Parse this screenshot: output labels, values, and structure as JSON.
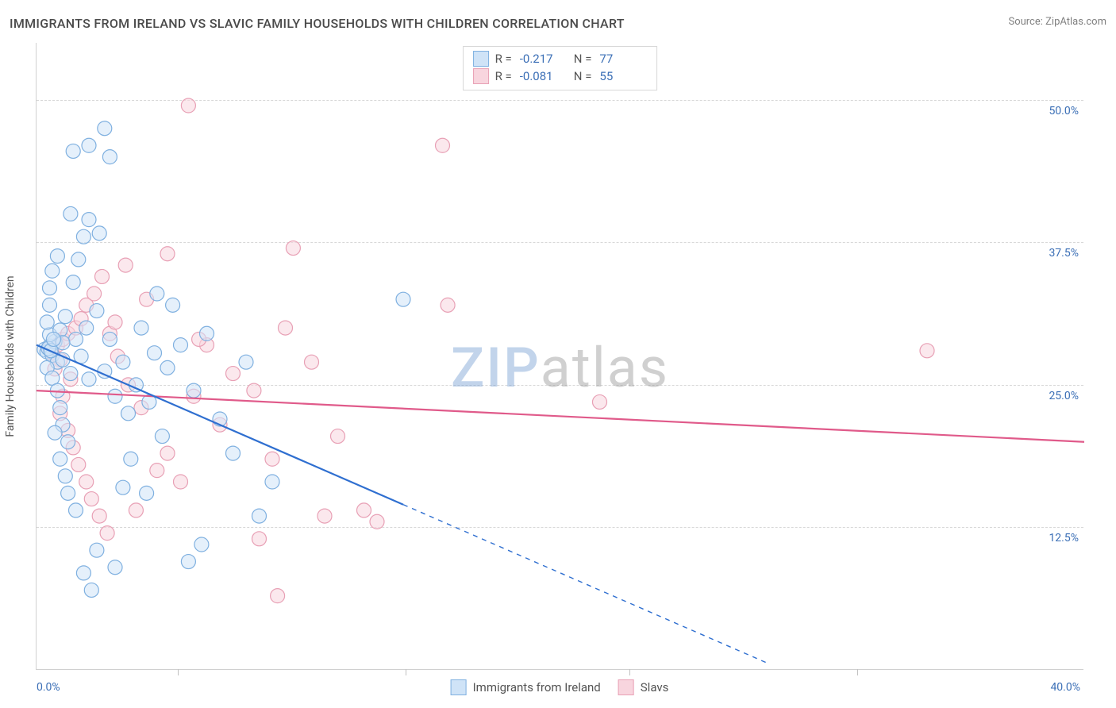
{
  "title": "IMMIGRANTS FROM IRELAND VS SLAVIC FAMILY HOUSEHOLDS WITH CHILDREN CORRELATION CHART",
  "source_label": "Source: ZipAtlas.com",
  "watermark": {
    "part1": "ZIP",
    "part2": "atlas"
  },
  "y_axis_title": "Family Households with Children",
  "chart": {
    "type": "scatter",
    "xlim": [
      0,
      40
    ],
    "ylim": [
      0,
      55
    ],
    "x_tick_labels": [
      {
        "v": 0,
        "label": "0.0%"
      },
      {
        "v": 40,
        "label": "40.0%"
      }
    ],
    "x_minor_ticks_pct": [
      0.135,
      0.352,
      0.566,
      0.783
    ],
    "y_ticks": [
      {
        "v": 12.5,
        "label": "12.5%"
      },
      {
        "v": 25.0,
        "label": "25.0%"
      },
      {
        "v": 37.5,
        "label": "37.5%"
      },
      {
        "v": 50.0,
        "label": "50.0%"
      }
    ],
    "grid_color": "#d8d8d8",
    "background_color": "#ffffff",
    "marker_radius": 9,
    "marker_stroke_width": 1.2,
    "trend_line_width": 2.2,
    "axis_label_color": "#3b6fb6",
    "y_axis_text_color": "#555555"
  },
  "series": {
    "ireland": {
      "label": "Immigrants from Ireland",
      "fill": "#cfe3f7",
      "stroke": "#7fb0e0",
      "fill_opacity": 0.55,
      "trend_color": "#2f6fd0",
      "R": "-0.217",
      "N": "77",
      "trend": {
        "x1": 0.0,
        "y1": 28.5,
        "x2": 14.0,
        "y2": 14.5,
        "x2_ext": 28.0,
        "y2_ext": 0.5
      },
      "points": [
        [
          0.3,
          28.1
        ],
        [
          0.4,
          27.9
        ],
        [
          0.5,
          28.4
        ],
        [
          0.6,
          27.6
        ],
        [
          0.7,
          28.8
        ],
        [
          0.8,
          27.0
        ],
        [
          0.5,
          29.4
        ],
        [
          0.4,
          26.5
        ],
        [
          0.9,
          29.8
        ],
        [
          1.0,
          27.2
        ],
        [
          0.4,
          30.5
        ],
        [
          0.6,
          25.6
        ],
        [
          1.1,
          31.0
        ],
        [
          1.3,
          26.0
        ],
        [
          0.5,
          32.0
        ],
        [
          0.8,
          24.5
        ],
        [
          1.5,
          29.0
        ],
        [
          1.7,
          27.5
        ],
        [
          0.5,
          33.5
        ],
        [
          0.9,
          23.0
        ],
        [
          1.9,
          30.0
        ],
        [
          2.0,
          25.5
        ],
        [
          0.6,
          35.0
        ],
        [
          1.0,
          21.5
        ],
        [
          2.3,
          31.5
        ],
        [
          2.6,
          26.2
        ],
        [
          0.8,
          36.3
        ],
        [
          1.2,
          20.0
        ],
        [
          2.8,
          29.0
        ],
        [
          3.0,
          24.0
        ],
        [
          0.7,
          20.8
        ],
        [
          1.4,
          34.0
        ],
        [
          3.3,
          27.0
        ],
        [
          3.5,
          22.5
        ],
        [
          0.9,
          18.5
        ],
        [
          1.6,
          36.0
        ],
        [
          3.8,
          25.0
        ],
        [
          4.0,
          30.0
        ],
        [
          1.1,
          17.0
        ],
        [
          1.8,
          38.0
        ],
        [
          4.3,
          23.5
        ],
        [
          4.5,
          27.8
        ],
        [
          1.2,
          15.5
        ],
        [
          2.0,
          39.5
        ],
        [
          4.8,
          20.5
        ],
        [
          5.0,
          26.5
        ],
        [
          1.5,
          14.0
        ],
        [
          2.4,
          38.3
        ],
        [
          5.5,
          28.5
        ],
        [
          1.4,
          45.5
        ],
        [
          2.0,
          46.0
        ],
        [
          2.6,
          47.5
        ],
        [
          1.3,
          40.0
        ],
        [
          2.8,
          45.0
        ],
        [
          1.8,
          8.5
        ],
        [
          2.1,
          7.0
        ],
        [
          3.0,
          9.0
        ],
        [
          2.3,
          10.5
        ],
        [
          3.3,
          16.0
        ],
        [
          3.6,
          18.5
        ],
        [
          4.2,
          15.5
        ],
        [
          4.6,
          33.0
        ],
        [
          5.2,
          32.0
        ],
        [
          6.0,
          24.5
        ],
        [
          6.5,
          29.5
        ],
        [
          7.0,
          22.0
        ],
        [
          7.5,
          19.0
        ],
        [
          8.0,
          27.0
        ],
        [
          8.5,
          13.5
        ],
        [
          9.0,
          16.5
        ],
        [
          5.8,
          9.5
        ],
        [
          6.3,
          11.0
        ],
        [
          14.0,
          32.5
        ],
        [
          1.0,
          28.7
        ],
        [
          0.45,
          28.2
        ],
        [
          0.55,
          28.0
        ],
        [
          0.65,
          29.0
        ]
      ]
    },
    "slavs": {
      "label": "Slavs",
      "fill": "#f8d5de",
      "stroke": "#e8a0b5",
      "fill_opacity": 0.55,
      "trend_color": "#e05a8a",
      "R": "-0.081",
      "N": "55",
      "trend": {
        "x1": 0.0,
        "y1": 24.5,
        "x2": 40.0,
        "y2": 20.0,
        "x2_ext": null,
        "y2_ext": null
      },
      "points": [
        [
          0.5,
          28.2
        ],
        [
          0.6,
          27.8
        ],
        [
          0.8,
          28.5
        ],
        [
          0.9,
          27.2
        ],
        [
          1.0,
          29.0
        ],
        [
          0.7,
          26.4
        ],
        [
          1.2,
          29.5
        ],
        [
          1.3,
          25.5
        ],
        [
          1.5,
          30.0
        ],
        [
          1.0,
          24.0
        ],
        [
          1.7,
          30.8
        ],
        [
          0.9,
          22.5
        ],
        [
          1.9,
          32.0
        ],
        [
          1.2,
          21.0
        ],
        [
          2.2,
          33.0
        ],
        [
          1.4,
          19.5
        ],
        [
          2.5,
          34.5
        ],
        [
          1.6,
          18.0
        ],
        [
          2.8,
          29.5
        ],
        [
          1.9,
          16.5
        ],
        [
          3.1,
          27.5
        ],
        [
          2.1,
          15.0
        ],
        [
          3.5,
          25.0
        ],
        [
          2.4,
          13.5
        ],
        [
          4.0,
          23.0
        ],
        [
          2.7,
          12.0
        ],
        [
          5.0,
          19.0
        ],
        [
          3.0,
          30.5
        ],
        [
          5.5,
          16.5
        ],
        [
          3.4,
          35.5
        ],
        [
          6.0,
          24.0
        ],
        [
          3.8,
          14.0
        ],
        [
          6.5,
          28.5
        ],
        [
          4.2,
          32.5
        ],
        [
          7.0,
          21.5
        ],
        [
          4.6,
          17.5
        ],
        [
          7.5,
          26.0
        ],
        [
          5.0,
          36.5
        ],
        [
          8.3,
          24.5
        ],
        [
          9.0,
          18.5
        ],
        [
          9.5,
          30.0
        ],
        [
          10.5,
          27.0
        ],
        [
          11.0,
          13.5
        ],
        [
          11.5,
          20.5
        ],
        [
          12.5,
          14.0
        ],
        [
          13.0,
          13.0
        ],
        [
          8.5,
          11.5
        ],
        [
          9.8,
          37.0
        ],
        [
          5.8,
          49.5
        ],
        [
          15.5,
          46.0
        ],
        [
          15.7,
          32.0
        ],
        [
          21.5,
          23.5
        ],
        [
          34.0,
          28.0
        ],
        [
          9.2,
          6.5
        ],
        [
          6.2,
          29.0
        ]
      ]
    }
  },
  "legend_top": {
    "rows": [
      {
        "series": "ireland",
        "R_label": "R =",
        "N_label": "N ="
      },
      {
        "series": "slavs",
        "R_label": "R =",
        "N_label": "N ="
      }
    ]
  }
}
